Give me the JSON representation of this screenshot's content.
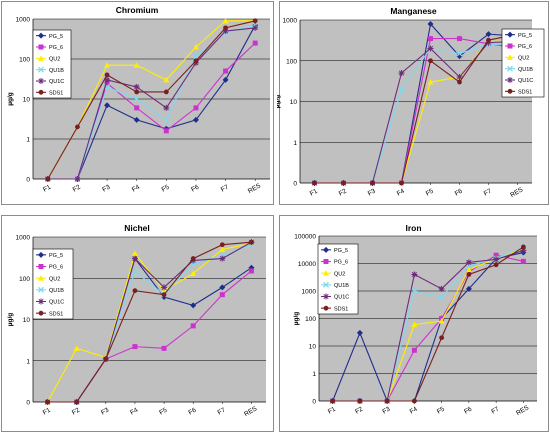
{
  "chart_data": [
    {
      "type": "line",
      "title": "Chromium",
      "ylabel": "µg/g",
      "xlabel": "",
      "scale": "log10",
      "ylim": [
        0,
        1000
      ],
      "yticks": [
        "0",
        "1",
        "10",
        "100",
        "1000"
      ],
      "categories": [
        "F1",
        "F2",
        "F3",
        "F4",
        "F5",
        "F6",
        "F7",
        "RES"
      ],
      "legend_position": "left",
      "series": [
        {
          "name": "PG_5",
          "color": "#1f2e8c",
          "marker": "diamond",
          "values": [
            0,
            0,
            7,
            3,
            1.8,
            3,
            30,
            700
          ]
        },
        {
          "name": "PG_6",
          "color": "#cc33cc",
          "marker": "square",
          "values": [
            0,
            0,
            25,
            6,
            1.6,
            6,
            50,
            250
          ]
        },
        {
          "name": "QU2",
          "color": "#ffee00",
          "marker": "triangle",
          "values": [
            0,
            2,
            70,
            70,
            30,
            200,
            900,
            900
          ]
        },
        {
          "name": "QU1B",
          "color": "#7fd8ee",
          "marker": "x",
          "values": [
            0,
            0,
            20,
            10,
            3,
            120,
            450,
            700
          ]
        },
        {
          "name": "QU1C",
          "color": "#6b2c7a",
          "marker": "star",
          "values": [
            0,
            0,
            30,
            20,
            6,
            80,
            500,
            600
          ]
        },
        {
          "name": "SDS1",
          "color": "#7a1f1f",
          "marker": "circle",
          "values": [
            0,
            2,
            40,
            15,
            15,
            90,
            600,
            900
          ]
        }
      ]
    },
    {
      "type": "line",
      "title": "Manganese",
      "ylabel": "µg/g",
      "xlabel": "",
      "scale": "log10",
      "ylim": [
        0,
        1000
      ],
      "yticks": [
        "0",
        "1",
        "10",
        "100",
        "1000"
      ],
      "categories": [
        "F1",
        "F2",
        "F3",
        "F4",
        "F5",
        "F6",
        "F7",
        "RES"
      ],
      "legend_position": "right",
      "series": [
        {
          "name": "PG_5",
          "color": "#1f2e8c",
          "marker": "diamond",
          "values": [
            0,
            0,
            0,
            0,
            800,
            130,
            450,
            400
          ]
        },
        {
          "name": "PG_6",
          "color": "#cc33cc",
          "marker": "square",
          "values": [
            0,
            0,
            0,
            0,
            350,
            350,
            260,
            210
          ]
        },
        {
          "name": "QU2",
          "color": "#ffee00",
          "marker": "triangle",
          "values": [
            0,
            0,
            0,
            0,
            30,
            40,
            300,
            300
          ]
        },
        {
          "name": "QU1B",
          "color": "#7fd8ee",
          "marker": "x",
          "values": [
            0,
            0,
            0,
            20,
            200,
            150,
            250,
            260
          ]
        },
        {
          "name": "QU1C",
          "color": "#6b2c7a",
          "marker": "star",
          "values": [
            0,
            0,
            0,
            50,
            200,
            40,
            280,
            300
          ]
        },
        {
          "name": "SDS1",
          "color": "#7a1f1f",
          "marker": "circle",
          "values": [
            0,
            0,
            0,
            0,
            100,
            30,
            320,
            450
          ]
        }
      ]
    },
    {
      "type": "line",
      "title": "Nichel",
      "ylabel": "µg/g",
      "xlabel": "",
      "scale": "log10",
      "ylim": [
        0,
        1000
      ],
      "yticks": [
        "0",
        "1",
        "10",
        "100",
        "1000"
      ],
      "categories": [
        "F1",
        "F2",
        "F3",
        "F4",
        "F5",
        "F6",
        "F7",
        "RES"
      ],
      "legend_position": "left",
      "series": [
        {
          "name": "PG_5",
          "color": "#1f2e8c",
          "marker": "diamond",
          "values": [
            0,
            0,
            1.1,
            300,
            35,
            22,
            60,
            180
          ]
        },
        {
          "name": "PG_6",
          "color": "#cc33cc",
          "marker": "square",
          "values": [
            0,
            0,
            1.1,
            2.2,
            2,
            7,
            40,
            150
          ]
        },
        {
          "name": "QU2",
          "color": "#ffee00",
          "marker": "triangle",
          "values": [
            0,
            2,
            1.2,
            400,
            50,
            130,
            500,
            700
          ]
        },
        {
          "name": "QU1B",
          "color": "#7fd8ee",
          "marker": "x",
          "values": [
            0,
            0,
            1.1,
            150,
            40,
            230,
            350,
            650
          ]
        },
        {
          "name": "QU1C",
          "color": "#6b2c7a",
          "marker": "star",
          "values": [
            0,
            0,
            1.1,
            300,
            60,
            270,
            300,
            750
          ]
        },
        {
          "name": "SDS1",
          "color": "#7a1f1f",
          "marker": "circle",
          "values": [
            0,
            0,
            1.1,
            50,
            40,
            300,
            650,
            750
          ]
        }
      ]
    },
    {
      "type": "line",
      "title": "Iron",
      "ylabel": "µg/g",
      "xlabel": "",
      "scale": "log10",
      "ylim": [
        0,
        100000
      ],
      "yticks": [
        "0",
        "1",
        "10",
        "100",
        "1000",
        "10000",
        "100000"
      ],
      "categories": [
        "F1",
        "F2",
        "F3",
        "F4",
        "F5",
        "F6",
        "F7",
        "RES"
      ],
      "legend_position": "left",
      "series": [
        {
          "name": "PG_5",
          "color": "#1f2e8c",
          "marker": "diamond",
          "values": [
            0,
            30,
            0,
            0,
            100,
            1200,
            15000,
            25000
          ]
        },
        {
          "name": "PG_6",
          "color": "#cc33cc",
          "marker": "square",
          "values": [
            0,
            0,
            0,
            7,
            100,
            5000,
            20000,
            12000
          ]
        },
        {
          "name": "QU2",
          "color": "#ffee00",
          "marker": "triangle",
          "values": [
            0,
            0,
            0,
            60,
            80,
            6000,
            15000,
            35000
          ]
        },
        {
          "name": "QU1B",
          "color": "#7fd8ee",
          "marker": "x",
          "values": [
            0,
            0,
            0,
            1000,
            600,
            8000,
            15000,
            40000
          ]
        },
        {
          "name": "QU1C",
          "color": "#6b2c7a",
          "marker": "star",
          "values": [
            0,
            0,
            0,
            4000,
            1200,
            11000,
            14000,
            30000
          ]
        },
        {
          "name": "SDS1",
          "color": "#7a1f1f",
          "marker": "circle",
          "values": [
            0,
            0,
            0,
            0,
            20,
            4000,
            9000,
            40000
          ]
        }
      ]
    }
  ]
}
